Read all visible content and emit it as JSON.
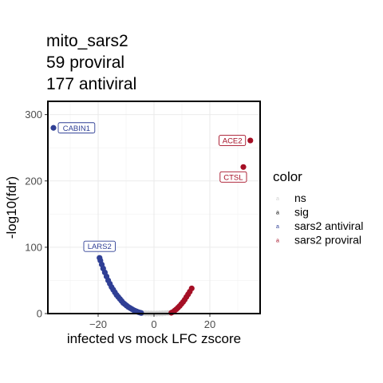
{
  "chart_data": {
    "type": "scatter",
    "title": [
      "mito_sars2",
      "59 proviral",
      "177 antiviral"
    ],
    "xlabel": "infected vs mock LFC zscore",
    "ylabel": "-log10(fdr)",
    "xlim": [
      -38,
      38
    ],
    "ylim": [
      0,
      320
    ],
    "x_ticks": [
      -20,
      0,
      20
    ],
    "x_tick_labels": [
      "−20",
      "0",
      "20"
    ],
    "y_ticks": [
      0,
      100,
      200,
      300
    ],
    "y_tick_labels": [
      "0",
      "100",
      "200",
      "300"
    ],
    "grid": true,
    "legend_position": "right",
    "legend": {
      "title": "color",
      "entries": [
        {
          "label": "ns",
          "color": "#d3d3d3"
        },
        {
          "label": "sig",
          "color": "#000000"
        },
        {
          "label": "sars2 antiviral",
          "color": "#2f3f95"
        },
        {
          "label": "sars2 proviral",
          "color": "#a50f25"
        }
      ]
    },
    "series": [
      {
        "name": "ns",
        "color": "#d3d3d3",
        "points": [
          [
            -4,
            0.5
          ],
          [
            -3,
            0.3
          ],
          [
            -2,
            0.2
          ],
          [
            -1,
            0.1
          ],
          [
            0,
            0.1
          ],
          [
            1,
            0.1
          ],
          [
            2,
            0.2
          ],
          [
            3,
            0.3
          ],
          [
            4,
            0.5
          ],
          [
            5,
            0.8
          ]
        ]
      },
      {
        "name": "sars2 antiviral",
        "color": "#2f3f95",
        "points": [
          [
            -36,
            280
          ],
          [
            -19.5,
            84
          ],
          [
            -19.2,
            80
          ],
          [
            -18.7,
            74
          ],
          [
            -18.2,
            68
          ],
          [
            -17.6,
            62
          ],
          [
            -17,
            56
          ],
          [
            -16.4,
            50
          ],
          [
            -15.8,
            45
          ],
          [
            -15.2,
            40
          ],
          [
            -14.6,
            36
          ],
          [
            -14,
            32
          ],
          [
            -13.4,
            28
          ],
          [
            -12.8,
            25
          ],
          [
            -12.2,
            22
          ],
          [
            -11.6,
            19
          ],
          [
            -11,
            16
          ],
          [
            -10.4,
            14
          ],
          [
            -9.8,
            12
          ],
          [
            -9.2,
            10
          ],
          [
            -8.6,
            8.5
          ],
          [
            -8,
            7
          ],
          [
            -7.4,
            5.5
          ],
          [
            -6.8,
            4.3
          ],
          [
            -6.2,
            3.2
          ],
          [
            -5.6,
            2.2
          ],
          [
            -5,
            1.4
          ],
          [
            -4.6,
            0.9
          ]
        ]
      },
      {
        "name": "sars2 proviral",
        "color": "#a50f25",
        "points": [
          [
            34.5,
            261
          ],
          [
            32,
            221
          ],
          [
            13.5,
            38
          ],
          [
            12.8,
            33
          ],
          [
            12.2,
            29
          ],
          [
            11.6,
            25
          ],
          [
            11,
            21
          ],
          [
            10.4,
            17.5
          ],
          [
            9.8,
            14.5
          ],
          [
            9.2,
            11.5
          ],
          [
            8.6,
            9
          ],
          [
            8,
            6.5
          ],
          [
            7.4,
            4.5
          ],
          [
            6.8,
            2.5
          ],
          [
            6.2,
            1.2
          ]
        ]
      }
    ],
    "annotations": [
      {
        "label": "CABIN1",
        "x": -36,
        "y": 280,
        "color": "#2f3f95",
        "side": "right"
      },
      {
        "label": "LARS2",
        "x": -19.5,
        "y": 84,
        "color": "#2f3f95",
        "side": "above"
      },
      {
        "label": "ACE2",
        "x": 34.5,
        "y": 261,
        "color": "#a50f25",
        "side": "left"
      },
      {
        "label": "CTSL",
        "x": 32,
        "y": 221,
        "color": "#a50f25",
        "side": "below-left"
      }
    ]
  }
}
